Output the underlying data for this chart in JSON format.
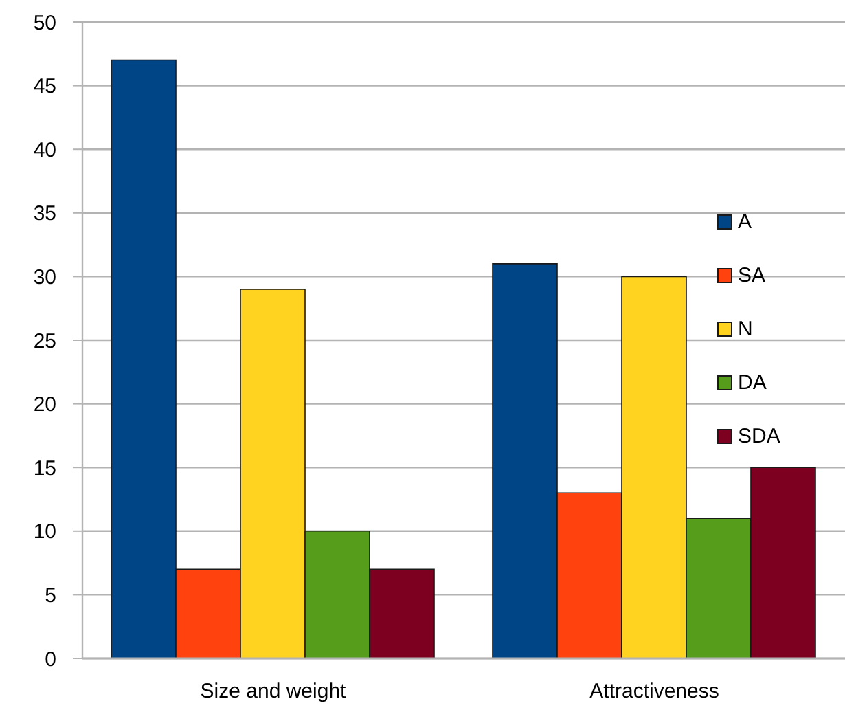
{
  "chart_data": {
    "type": "bar",
    "categories": [
      "Size and weight",
      "Attractiveness"
    ],
    "series": [
      {
        "name": "A",
        "color": "#004586",
        "values": [
          47,
          31
        ]
      },
      {
        "name": "SA",
        "color": "#ff420e",
        "values": [
          7,
          13
        ]
      },
      {
        "name": "N",
        "color": "#ffd320",
        "values": [
          29,
          30
        ]
      },
      {
        "name": "DA",
        "color": "#579d1c",
        "values": [
          10,
          11
        ]
      },
      {
        "name": "SDA",
        "color": "#7e0021",
        "values": [
          7,
          15
        ]
      }
    ],
    "ylim": [
      0,
      50
    ],
    "yticks": [
      0,
      5,
      10,
      15,
      20,
      25,
      30,
      35,
      40,
      45,
      50
    ],
    "grid": "y",
    "legend": "right"
  }
}
